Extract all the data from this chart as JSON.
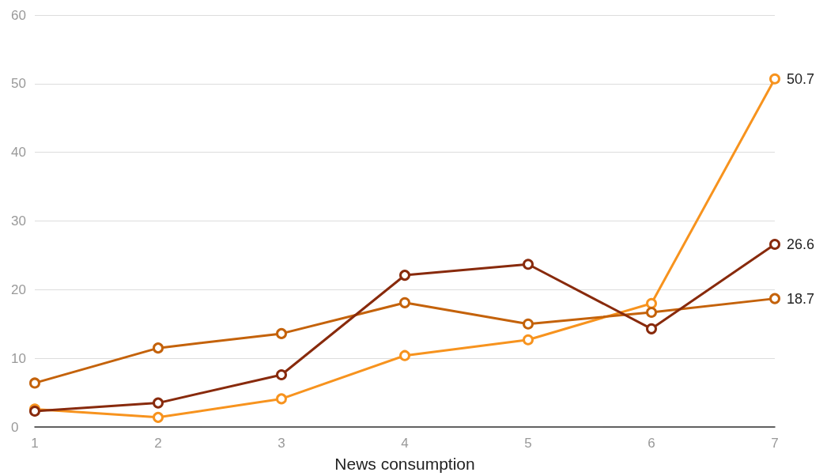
{
  "chart_data": {
    "type": "line",
    "xlabel": "News consumption",
    "categories": [
      "1",
      "2",
      "3",
      "4",
      "5",
      "6",
      "7"
    ],
    "series": [
      {
        "color": "#f7931e",
        "values": [
          2.6,
          1.4,
          4.1,
          10.4,
          12.7,
          18.0,
          50.7
        ],
        "value_labels": [
          null,
          null,
          null,
          null,
          null,
          null,
          "50.7"
        ]
      },
      {
        "color": "#c4620a",
        "values": [
          6.4,
          11.5,
          13.6,
          18.1,
          15.0,
          16.7,
          18.7
        ],
        "value_labels": [
          null,
          null,
          null,
          null,
          null,
          null,
          "18.7"
        ]
      },
      {
        "color": "#882a0c",
        "values": [
          2.3,
          3.5,
          7.6,
          22.1,
          23.7,
          14.3,
          26.6
        ],
        "value_labels": [
          null,
          null,
          null,
          null,
          null,
          null,
          "26.6"
        ]
      }
    ],
    "ylim": [
      0,
      60
    ],
    "yticks": [
      0,
      10,
      20,
      30,
      40,
      50,
      60
    ],
    "grid": "y",
    "marker": "circle",
    "line_style": "solid"
  }
}
